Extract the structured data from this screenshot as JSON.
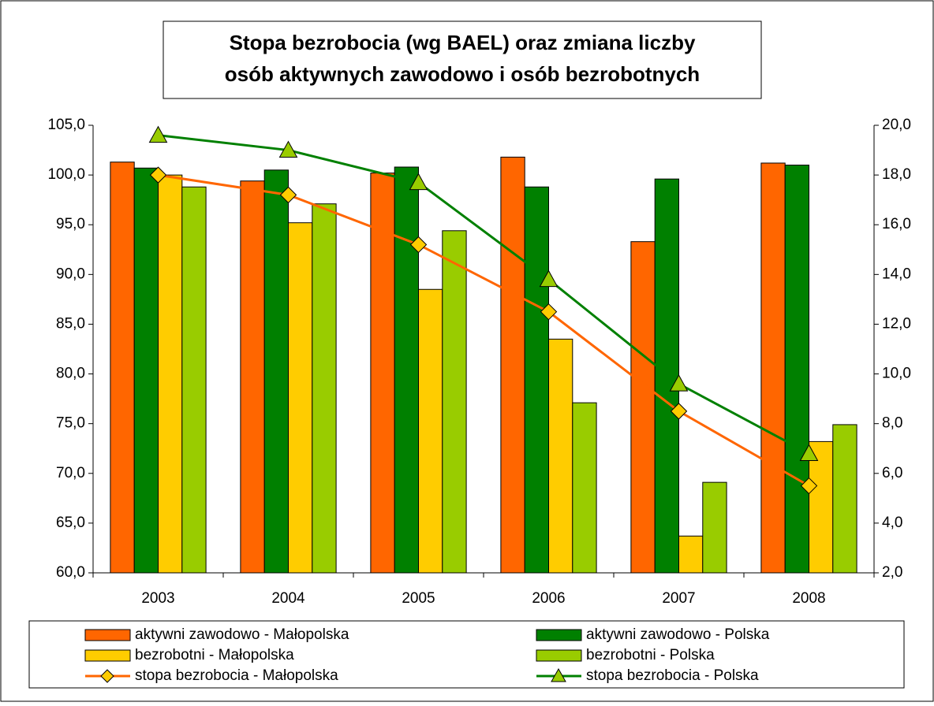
{
  "chart_data": {
    "type": "bar_line",
    "title": [
      "Stopa bezrobocia (wg BAEL) oraz zmiana liczby",
      "osób aktywnych zawodowo i osób bezrobotnych"
    ],
    "categories": [
      "2003",
      "2004",
      "2005",
      "2006",
      "2007",
      "2008"
    ],
    "series": [
      {
        "name": "aktywni zawodowo - Małopolska",
        "color": "#ff6600",
        "type": "bar",
        "values": [
          101.3,
          99.4,
          100.2,
          101.8,
          93.3,
          101.2
        ]
      },
      {
        "name": "aktywni zawodowo - Polska",
        "color": "#008000",
        "type": "bar",
        "values": [
          100.7,
          100.5,
          100.8,
          98.8,
          99.6,
          101.0
        ]
      },
      {
        "name": "bezrobotni - Małopolska",
        "color": "#ffcc00",
        "type": "bar",
        "values": [
          100.0,
          95.2,
          88.5,
          83.5,
          63.7,
          73.2
        ]
      },
      {
        "name": "bezrobotni - Polska",
        "color": "#99cc00",
        "type": "bar",
        "values": [
          98.8,
          97.1,
          94.4,
          77.1,
          69.1,
          74.9
        ]
      },
      {
        "name": "stopa bezrobocia - Małopolska",
        "color": "#ff6600",
        "marker_color": "#ffcc00",
        "marker": "diamond",
        "type": "line",
        "axis": "y2",
        "values": [
          18.0,
          17.2,
          15.2,
          12.5,
          8.5,
          5.5
        ]
      },
      {
        "name": "stopa bezrobocia - Polska",
        "color": "#008000",
        "marker_color": "#99cc00",
        "marker": "triangle",
        "type": "line",
        "axis": "y2",
        "values": [
          19.6,
          19.0,
          17.7,
          13.8,
          9.6,
          6.8
        ]
      }
    ],
    "ylim": [
      60,
      105
    ],
    "yticks": [
      {
        "value": 60,
        "label": "60,0"
      },
      {
        "value": 65,
        "label": "65,0"
      },
      {
        "value": 70,
        "label": "70,0"
      },
      {
        "value": 75,
        "label": "75,0"
      },
      {
        "value": 80,
        "label": "80,0"
      },
      {
        "value": 85,
        "label": "85,0"
      },
      {
        "value": 90,
        "label": "90,0"
      },
      {
        "value": 95,
        "label": "95,0"
      },
      {
        "value": 100,
        "label": "100,0"
      },
      {
        "value": 105,
        "label": "105,0"
      }
    ],
    "y2lim": [
      2,
      20
    ],
    "y2ticks": [
      {
        "value": 2,
        "label": "2,0"
      },
      {
        "value": 4,
        "label": "4,0"
      },
      {
        "value": 6,
        "label": "6,0"
      },
      {
        "value": 8,
        "label": "8,0"
      },
      {
        "value": 10,
        "label": "10,0"
      },
      {
        "value": 12,
        "label": "12,0"
      },
      {
        "value": 14,
        "label": "14,0"
      },
      {
        "value": 16,
        "label": "16,0"
      },
      {
        "value": 18,
        "label": "18,0"
      },
      {
        "value": 20,
        "label": "20,0"
      }
    ],
    "grid": false,
    "legend": "bottom"
  }
}
